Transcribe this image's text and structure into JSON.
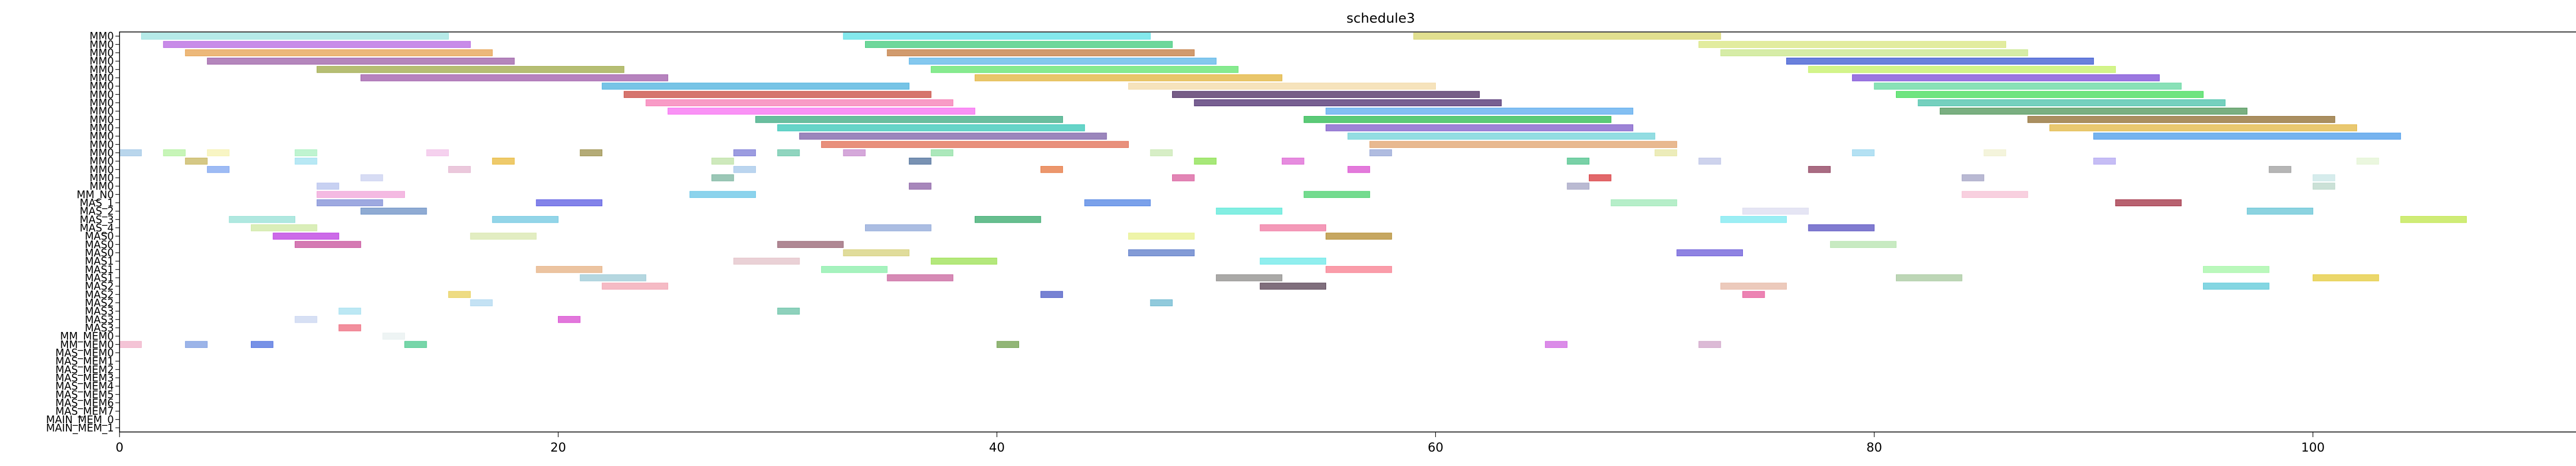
{
  "chart_data": {
    "type": "gantt",
    "title": "schedule3",
    "xlabel": "",
    "ylabel": "",
    "xlim": [
      0,
      115
    ],
    "xticks": [
      0,
      20,
      40,
      60,
      80,
      100
    ],
    "grid": false,
    "legend": "none",
    "rows": [
      "MM0",
      "MM0",
      "MM0",
      "MM0",
      "MM0",
      "MM0",
      "MM0",
      "MM0",
      "MM0",
      "MM0",
      "MM0",
      "MM0",
      "MM0",
      "MM0",
      "MM0",
      "MM0",
      "MM0",
      "MM0",
      "MM0",
      "MM_N0",
      "MAS_1",
      "MAS_2",
      "MAS_3",
      "MAS_4",
      "MAS0",
      "MAS0",
      "MAS0",
      "MAS1",
      "MAS1",
      "MAS1",
      "MAS2",
      "MAS2",
      "MAS2",
      "MAS3",
      "MAS3",
      "MAS3",
      "MM_MEM0",
      "MM_MEM0",
      "MAS_MEM0",
      "MAS_MEM1",
      "MAS_MEM2",
      "MAS_MEM3",
      "MAS_MEM4",
      "MAS_MEM5",
      "MAS_MEM6",
      "MAS_MEM7",
      "MAIN_MEM_0",
      "MAIN_MEM_1"
    ],
    "tasks": [
      {
        "row": 0,
        "start": 1,
        "end": 15,
        "color": "#9de3e0"
      },
      {
        "row": 0,
        "start": 33,
        "end": 47,
        "color": "#5be0e6"
      },
      {
        "row": 0,
        "start": 59,
        "end": 73,
        "color": "#d7d46b"
      },
      {
        "row": 1,
        "start": 2,
        "end": 16,
        "color": "#b565e0"
      },
      {
        "row": 1,
        "start": 34,
        "end": 48,
        "color": "#3ec979"
      },
      {
        "row": 1,
        "start": 72,
        "end": 86,
        "color": "#d8e67f"
      },
      {
        "row": 2,
        "start": 3,
        "end": 17,
        "color": "#e6a04e"
      },
      {
        "row": 2,
        "start": 35,
        "end": 49,
        "color": "#c27a3e"
      },
      {
        "row": 2,
        "start": 73,
        "end": 87,
        "color": "#c8e68a"
      },
      {
        "row": 3,
        "start": 4,
        "end": 18,
        "color": "#9b5da6"
      },
      {
        "row": 3,
        "start": 36,
        "end": 50,
        "color": "#5bb5e8"
      },
      {
        "row": 3,
        "start": 76,
        "end": 90,
        "color": "#3856d0"
      },
      {
        "row": 4,
        "start": 9,
        "end": 23,
        "color": "#9ea846"
      },
      {
        "row": 4,
        "start": 37,
        "end": 51,
        "color": "#5fe36b"
      },
      {
        "row": 4,
        "start": 77,
        "end": 91,
        "color": "#c4f064"
      },
      {
        "row": 5,
        "start": 11,
        "end": 25,
        "color": "#9d59a8"
      },
      {
        "row": 5,
        "start": 39,
        "end": 53,
        "color": "#e2b33a"
      },
      {
        "row": 5,
        "start": 79,
        "end": 93,
        "color": "#7a4ad6"
      },
      {
        "row": 6,
        "start": 22,
        "end": 36,
        "color": "#4ab0de"
      },
      {
        "row": 6,
        "start": 46,
        "end": 60,
        "color": "#f3d9a6"
      },
      {
        "row": 6,
        "start": 80,
        "end": 94,
        "color": "#62d79f"
      },
      {
        "row": 7,
        "start": 23,
        "end": 37,
        "color": "#c8473e"
      },
      {
        "row": 7,
        "start": 48,
        "end": 62,
        "color": "#49285f"
      },
      {
        "row": 7,
        "start": 81,
        "end": 95,
        "color": "#3fdb55"
      },
      {
        "row": 8,
        "start": 24,
        "end": 38,
        "color": "#f57ab3"
      },
      {
        "row": 8,
        "start": 49,
        "end": 63,
        "color": "#4b2b6d"
      },
      {
        "row": 8,
        "start": 82,
        "end": 96,
        "color": "#47c0a8"
      },
      {
        "row": 9,
        "start": 25,
        "end": 39,
        "color": "#f76df2"
      },
      {
        "row": 9,
        "start": 55,
        "end": 69,
        "color": "#5aa9ee"
      },
      {
        "row": 9,
        "start": 83,
        "end": 97,
        "color": "#4d9457"
      },
      {
        "row": 10,
        "start": 29,
        "end": 43,
        "color": "#38a87f"
      },
      {
        "row": 10,
        "start": 54,
        "end": 68,
        "color": "#26b84b"
      },
      {
        "row": 10,
        "start": 87,
        "end": 101,
        "color": "#8d6a2c"
      },
      {
        "row": 11,
        "start": 30,
        "end": 44,
        "color": "#33c5b6"
      },
      {
        "row": 11,
        "start": 55,
        "end": 69,
        "color": "#7c5ac8"
      },
      {
        "row": 11,
        "start": 88,
        "end": 102,
        "color": "#e2b640"
      },
      {
        "row": 12,
        "start": 31,
        "end": 45,
        "color": "#7a5ea6"
      },
      {
        "row": 12,
        "start": 56,
        "end": 70,
        "color": "#6fd1d8"
      },
      {
        "row": 12,
        "start": 90,
        "end": 104,
        "color": "#4899ea"
      },
      {
        "row": 13,
        "start": 32,
        "end": 46,
        "color": "#e06b50"
      },
      {
        "row": 13,
        "start": 57,
        "end": 71,
        "color": "#e0a16b"
      },
      {
        "row": 14,
        "start": 0,
        "end": 1,
        "color": "#a2c8e6"
      },
      {
        "row": 14,
        "start": 2,
        "end": 3,
        "color": "#b4f2a0"
      },
      {
        "row": 14,
        "start": 4,
        "end": 5,
        "color": "#f5f2b0"
      },
      {
        "row": 14,
        "start": 8,
        "end": 9,
        "color": "#a9f0c0"
      },
      {
        "row": 14,
        "start": 14,
        "end": 15,
        "color": "#f2c2e8"
      },
      {
        "row": 14,
        "start": 21,
        "end": 22,
        "color": "#9b8f4a"
      },
      {
        "row": 14,
        "start": 28,
        "end": 29,
        "color": "#7b7bd6"
      },
      {
        "row": 14,
        "start": 30,
        "end": 31,
        "color": "#6bc7a9"
      },
      {
        "row": 14,
        "start": 33,
        "end": 34,
        "color": "#c78bce"
      },
      {
        "row": 14,
        "start": 37,
        "end": 38,
        "color": "#90e0a4"
      },
      {
        "row": 14,
        "start": 47,
        "end": 48,
        "color": "#c9e8b3"
      },
      {
        "row": 14,
        "start": 57,
        "end": 58,
        "color": "#95a5d6"
      },
      {
        "row": 14,
        "start": 70,
        "end": 71,
        "color": "#e6e6a3"
      },
      {
        "row": 14,
        "start": 79,
        "end": 80,
        "color": "#9bd7ef"
      },
      {
        "row": 14,
        "start": 85,
        "end": 86,
        "color": "#f0f0d0"
      },
      {
        "row": 15,
        "start": 3,
        "end": 4,
        "color": "#c7b55d"
      },
      {
        "row": 15,
        "start": 8,
        "end": 9,
        "color": "#a0e0f0"
      },
      {
        "row": 15,
        "start": 17,
        "end": 18,
        "color": "#e8b83a"
      },
      {
        "row": 15,
        "start": 27,
        "end": 28,
        "color": "#bde1a5"
      },
      {
        "row": 15,
        "start": 36,
        "end": 37,
        "color": "#4c6e9a"
      },
      {
        "row": 15,
        "start": 49,
        "end": 50,
        "color": "#8ae04c"
      },
      {
        "row": 15,
        "start": 53,
        "end": 54,
        "color": "#dd66d4"
      },
      {
        "row": 15,
        "start": 66,
        "end": 67,
        "color": "#4cc28a"
      },
      {
        "row": 15,
        "start": 72,
        "end": 73,
        "color": "#bdc4e7"
      },
      {
        "row": 15,
        "start": 90,
        "end": 91,
        "color": "#b3a7f1"
      },
      {
        "row": 15,
        "start": 102,
        "end": 103,
        "color": "#e4f4d4"
      },
      {
        "row": 16,
        "start": 4,
        "end": 5,
        "color": "#7da4f0"
      },
      {
        "row": 16,
        "start": 15,
        "end": 16,
        "color": "#e4b5d0"
      },
      {
        "row": 16,
        "start": 28,
        "end": 29,
        "color": "#a4c7e9"
      },
      {
        "row": 16,
        "start": 42,
        "end": 43,
        "color": "#e6743c"
      },
      {
        "row": 16,
        "start": 56,
        "end": 57,
        "color": "#da4ecf"
      },
      {
        "row": 16,
        "start": 77,
        "end": 78,
        "color": "#8c3b5a"
      },
      {
        "row": 16,
        "start": 98,
        "end": 99,
        "color": "#9d9d9d"
      },
      {
        "row": 17,
        "start": 11,
        "end": 12,
        "color": "#c9d0f0"
      },
      {
        "row": 17,
        "start": 27,
        "end": 28,
        "color": "#79b49d"
      },
      {
        "row": 17,
        "start": 48,
        "end": 49,
        "color": "#d85c9c"
      },
      {
        "row": 17,
        "start": 67,
        "end": 68,
        "color": "#d8363a"
      },
      {
        "row": 17,
        "start": 84,
        "end": 85,
        "color": "#a2a2c4"
      },
      {
        "row": 17,
        "start": 100,
        "end": 101,
        "color": "#c8e6e6"
      },
      {
        "row": 18,
        "start": 9,
        "end": 10,
        "color": "#b6c1ee"
      },
      {
        "row": 18,
        "start": 36,
        "end": 37,
        "color": "#8a5fa4"
      },
      {
        "row": 18,
        "start": 66,
        "end": 67,
        "color": "#a3a3c3"
      },
      {
        "row": 18,
        "start": 100,
        "end": 101,
        "color": "#b9d7c9"
      },
      {
        "row": 19,
        "start": 9,
        "end": 13,
        "color": "#f0a3d8"
      },
      {
        "row": 19,
        "start": 26,
        "end": 29,
        "color": "#66c4e6"
      },
      {
        "row": 19,
        "start": 54,
        "end": 57,
        "color": "#46cf6a"
      },
      {
        "row": 19,
        "start": 84,
        "end": 87,
        "color": "#f5c0d4"
      },
      {
        "row": 20,
        "start": 9,
        "end": 12,
        "color": "#7e8cd6"
      },
      {
        "row": 20,
        "start": 19,
        "end": 22,
        "color": "#5a5ae2"
      },
      {
        "row": 20,
        "start": 44,
        "end": 47,
        "color": "#4f82e3"
      },
      {
        "row": 20,
        "start": 68,
        "end": 71,
        "color": "#9ee8b7"
      },
      {
        "row": 20,
        "start": 91,
        "end": 94,
        "color": "#a02d40"
      },
      {
        "row": 21,
        "start": 11,
        "end": 14,
        "color": "#6a8fc4"
      },
      {
        "row": 21,
        "start": 50,
        "end": 53,
        "color": "#5ae8d8"
      },
      {
        "row": 21,
        "start": 74,
        "end": 77,
        "color": "#dcdcf0"
      },
      {
        "row": 21,
        "start": 97,
        "end": 100,
        "color": "#65c4d5"
      },
      {
        "row": 22,
        "start": 5,
        "end": 8,
        "color": "#95e0d6"
      },
      {
        "row": 22,
        "start": 17,
        "end": 20,
        "color": "#6fc7e0"
      },
      {
        "row": 22,
        "start": 39,
        "end": 42,
        "color": "#34a86a"
      },
      {
        "row": 22,
        "start": 73,
        "end": 76,
        "color": "#7be8f0"
      },
      {
        "row": 22,
        "start": 104,
        "end": 107,
        "color": "#bfe64a"
      },
      {
        "row": 23,
        "start": 6,
        "end": 9,
        "color": "#cde8a1"
      },
      {
        "row": 23,
        "start": 34,
        "end": 37,
        "color": "#8fa7d8"
      },
      {
        "row": 23,
        "start": 52,
        "end": 55,
        "color": "#f077a0"
      },
      {
        "row": 23,
        "start": 77,
        "end": 80,
        "color": "#564fc0"
      },
      {
        "row": 24,
        "start": 7,
        "end": 10,
        "color": "#bb3ae0"
      },
      {
        "row": 24,
        "start": 16,
        "end": 19,
        "color": "#d8e7ad"
      },
      {
        "row": 24,
        "start": 46,
        "end": 49,
        "color": "#e8f08c"
      },
      {
        "row": 24,
        "start": 55,
        "end": 58,
        "color": "#b38a2c"
      },
      {
        "row": 25,
        "start": 8,
        "end": 11,
        "color": "#c74d99"
      },
      {
        "row": 25,
        "start": 30,
        "end": 33,
        "color": "#956070"
      },
      {
        "row": 25,
        "start": 78,
        "end": 81,
        "color": "#b5e3ad"
      },
      {
        "row": 26,
        "start": 33,
        "end": 36,
        "color": "#d5d07a"
      },
      {
        "row": 26,
        "start": 46,
        "end": 49,
        "color": "#5a79c8"
      },
      {
        "row": 26,
        "start": 71,
        "end": 74,
        "color": "#6a5ad8"
      },
      {
        "row": 27,
        "start": 28,
        "end": 31,
        "color": "#e3c2c8"
      },
      {
        "row": 27,
        "start": 37,
        "end": 40,
        "color": "#9be050"
      },
      {
        "row": 27,
        "start": 52,
        "end": 55,
        "color": "#6be8e8"
      },
      {
        "row": 28,
        "start": 19,
        "end": 22,
        "color": "#e6b082"
      },
      {
        "row": 28,
        "start": 32,
        "end": 35,
        "color": "#88eea8"
      },
      {
        "row": 28,
        "start": 55,
        "end": 58,
        "color": "#f87c8e"
      },
      {
        "row": 28,
        "start": 95,
        "end": 98,
        "color": "#a3f5a6"
      },
      {
        "row": 29,
        "start": 21,
        "end": 24,
        "color": "#9ccad6"
      },
      {
        "row": 29,
        "start": 35,
        "end": 38,
        "color": "#c8639c"
      },
      {
        "row": 29,
        "start": 50,
        "end": 53,
        "color": "#8d8c8a"
      },
      {
        "row": 29,
        "start": 81,
        "end": 84,
        "color": "#a7c89e"
      },
      {
        "row": 29,
        "start": 100,
        "end": 103,
        "color": "#e4ca39"
      },
      {
        "row": 30,
        "start": 22,
        "end": 25,
        "color": "#f2a4b2"
      },
      {
        "row": 30,
        "start": 52,
        "end": 55,
        "color": "#563f52"
      },
      {
        "row": 30,
        "start": 73,
        "end": 76,
        "color": "#e6b8a5"
      },
      {
        "row": 30,
        "start": 95,
        "end": 98,
        "color": "#5bc8d8"
      },
      {
        "row": 31,
        "start": 15,
        "end": 16,
        "color": "#e8d05a"
      },
      {
        "row": 31,
        "start": 42,
        "end": 43,
        "color": "#4a58c4"
      },
      {
        "row": 31,
        "start": 74,
        "end": 75,
        "color": "#e65a9a"
      },
      {
        "row": 32,
        "start": 16,
        "end": 17,
        "color": "#b0d8f0"
      },
      {
        "row": 32,
        "start": 47,
        "end": 48,
        "color": "#6cb8d0"
      },
      {
        "row": 33,
        "start": 10,
        "end": 11,
        "color": "#a6e0f0"
      },
      {
        "row": 33,
        "start": 30,
        "end": 31,
        "color": "#68c2a6"
      },
      {
        "row": 34,
        "start": 8,
        "end": 9,
        "color": "#c9d5f0"
      },
      {
        "row": 34,
        "start": 20,
        "end": 21,
        "color": "#d84ad0"
      },
      {
        "row": 35,
        "start": 10,
        "end": 11,
        "color": "#ee6a7c"
      },
      {
        "row": 36,
        "start": 12,
        "end": 13,
        "color": "#e8f0f0"
      },
      {
        "row": 37,
        "start": 0,
        "end": 1,
        "color": "#f0b0c8"
      },
      {
        "row": 37,
        "start": 3,
        "end": 4,
        "color": "#7b9be0"
      },
      {
        "row": 37,
        "start": 6,
        "end": 7,
        "color": "#4b6dde"
      },
      {
        "row": 37,
        "start": 13,
        "end": 14,
        "color": "#4ac88c"
      },
      {
        "row": 37,
        "start": 40,
        "end": 41,
        "color": "#6d9e4a"
      },
      {
        "row": 37,
        "start": 65,
        "end": 66,
        "color": "#cf65e0"
      },
      {
        "row": 37,
        "start": 72,
        "end": 73,
        "color": "#d0a3c8"
      }
    ]
  }
}
